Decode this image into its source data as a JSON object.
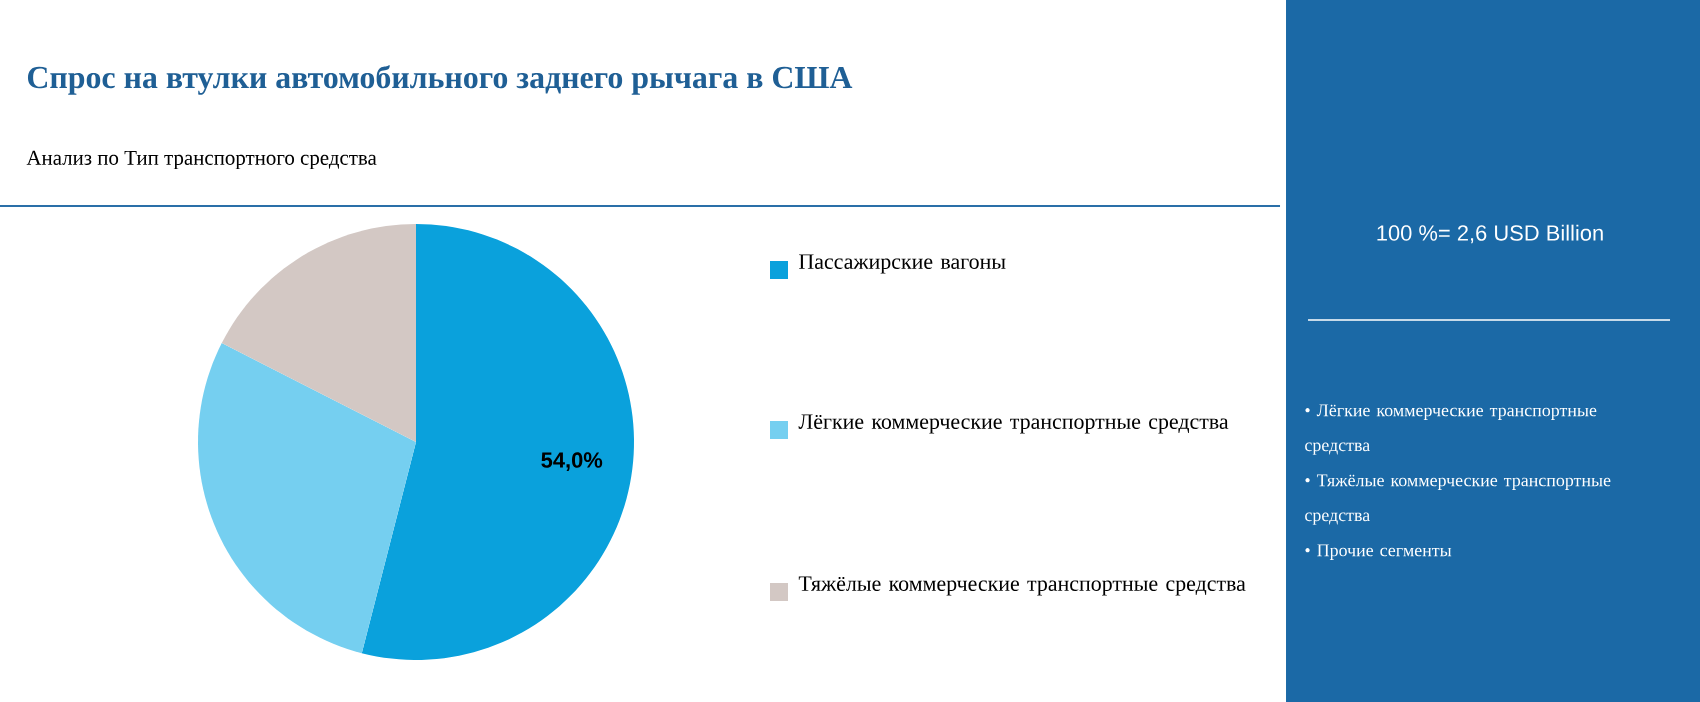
{
  "chart_data": {
    "type": "pie",
    "title": "Спрос на втулки автомобильного заднего рычага в США",
    "subtitle": "Анализ по Тип транспортного средства",
    "categories": [
      "Пассажирские вагоны",
      "Лёгкие коммерческие транспортные средства",
      "Тяжёлые коммерческие транспортные средства"
    ],
    "values": [
      54.0,
      28.5,
      17.5
    ],
    "colors": [
      "#0aa1dc",
      "#75cff0",
      "#d3c8c4"
    ],
    "value_labels": [
      "54,0%",
      null,
      null
    ],
    "legend": "right",
    "annotations": [
      "100 %= 2,6 USD Billion",
      "• Лёгкие коммерческие транспортные средства",
      "• Тяжёлые коммерческие транспортные средства",
      "• Прочие сегменты"
    ]
  }
}
